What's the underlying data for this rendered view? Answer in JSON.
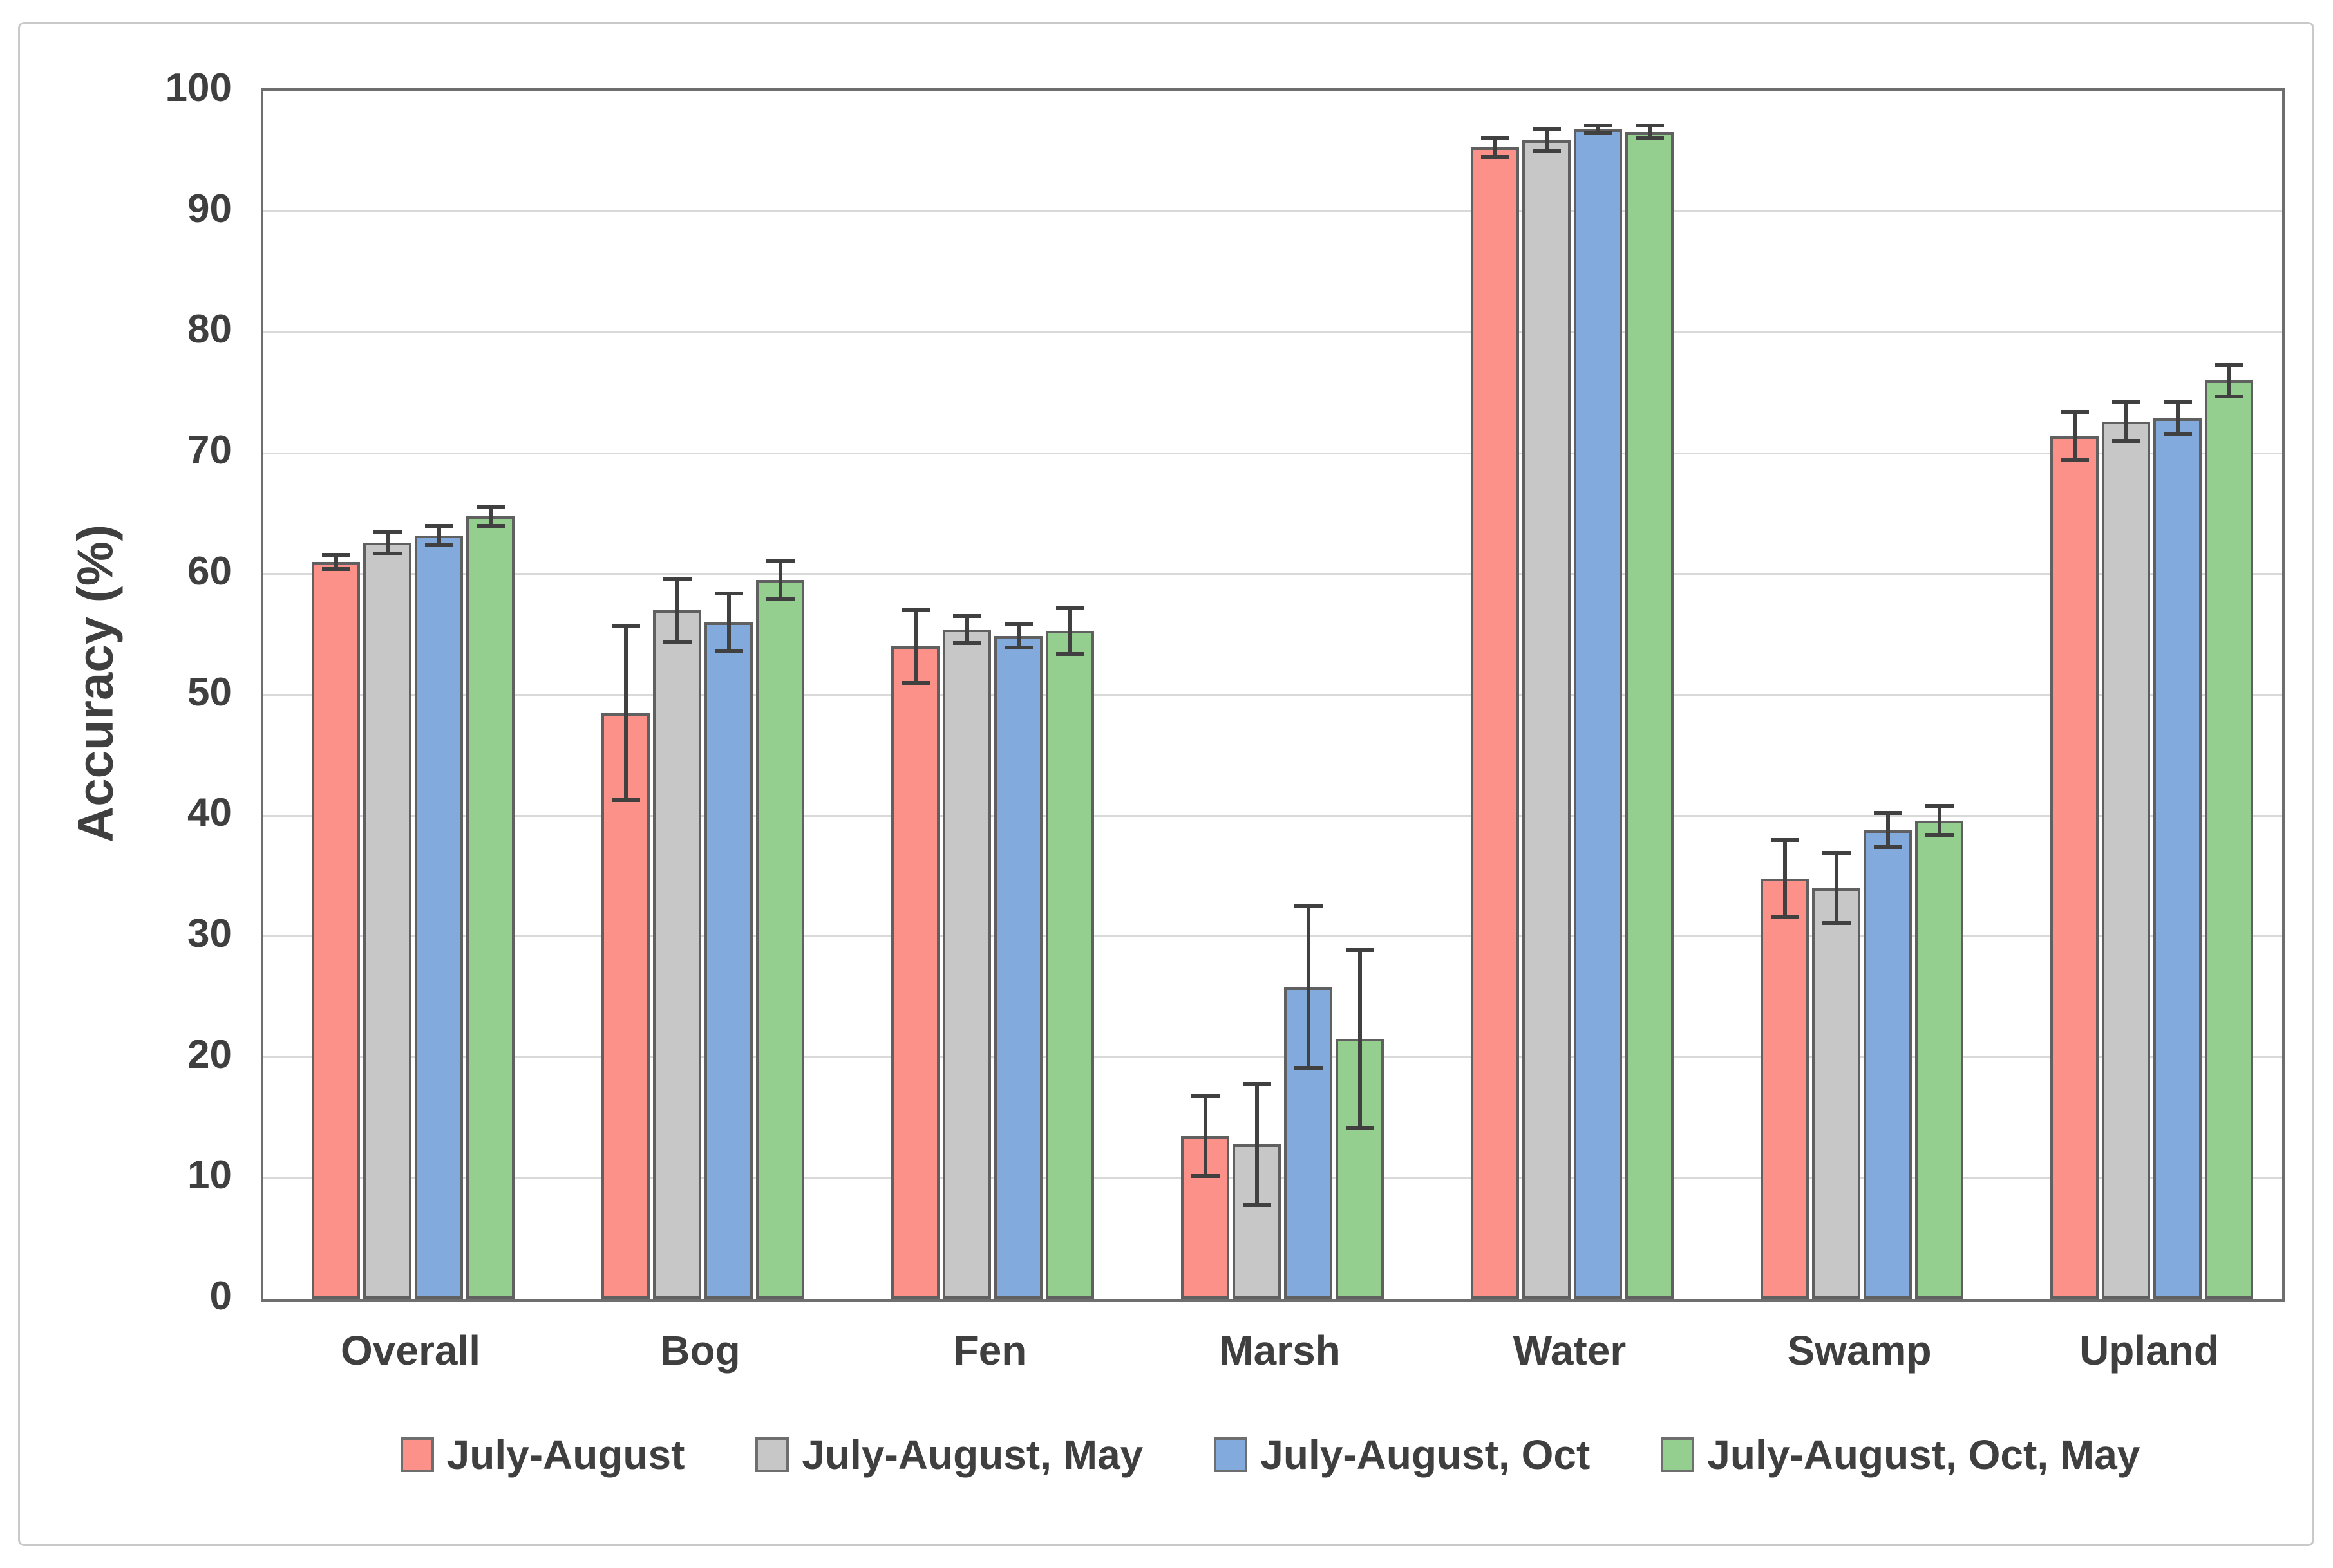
{
  "chart_data": {
    "type": "bar",
    "title": "",
    "ylabel": "Accuracy (%)",
    "ylim": [
      0,
      100
    ],
    "ytick_step": 10,
    "grid": true,
    "legend_position": "bottom",
    "categories": [
      "Overall",
      "Bog",
      "Fen",
      "Marsh",
      "Water",
      "Swamp",
      "Upland"
    ],
    "series": [
      {
        "name": "July-August",
        "color": "#FB9189",
        "values": [
          61.0,
          48.5,
          54.0,
          13.5,
          95.3,
          34.8,
          71.4
        ],
        "errors": [
          0.6,
          7.2,
          3.0,
          3.3,
          0.8,
          3.2,
          2.0
        ]
      },
      {
        "name": "July-August, May",
        "color": "#C7C7C7",
        "values": [
          62.6,
          57.0,
          55.4,
          12.8,
          95.9,
          34.0,
          72.6
        ],
        "errors": [
          0.9,
          2.6,
          1.1,
          5.0,
          0.9,
          2.9,
          1.6
        ]
      },
      {
        "name": "July-August, Oct",
        "color": "#82AADD",
        "values": [
          63.2,
          56.0,
          54.9,
          25.8,
          96.8,
          38.8,
          72.9
        ],
        "errors": [
          0.8,
          2.4,
          1.0,
          6.7,
          0.3,
          1.4,
          1.3
        ]
      },
      {
        "name": "July-August, Oct, May",
        "color": "#95CF90",
        "values": [
          64.8,
          59.5,
          55.3,
          21.5,
          96.6,
          39.6,
          76.0
        ],
        "errors": [
          0.8,
          1.6,
          1.9,
          7.4,
          0.5,
          1.2,
          1.3
        ]
      }
    ]
  },
  "styles": {
    "bar_border": "#606060",
    "error_bar_color": "#404040",
    "grid_color": "#D9D9D9",
    "plot_border_color": "#6E6E6E",
    "text_color": "#3F3F3F"
  }
}
